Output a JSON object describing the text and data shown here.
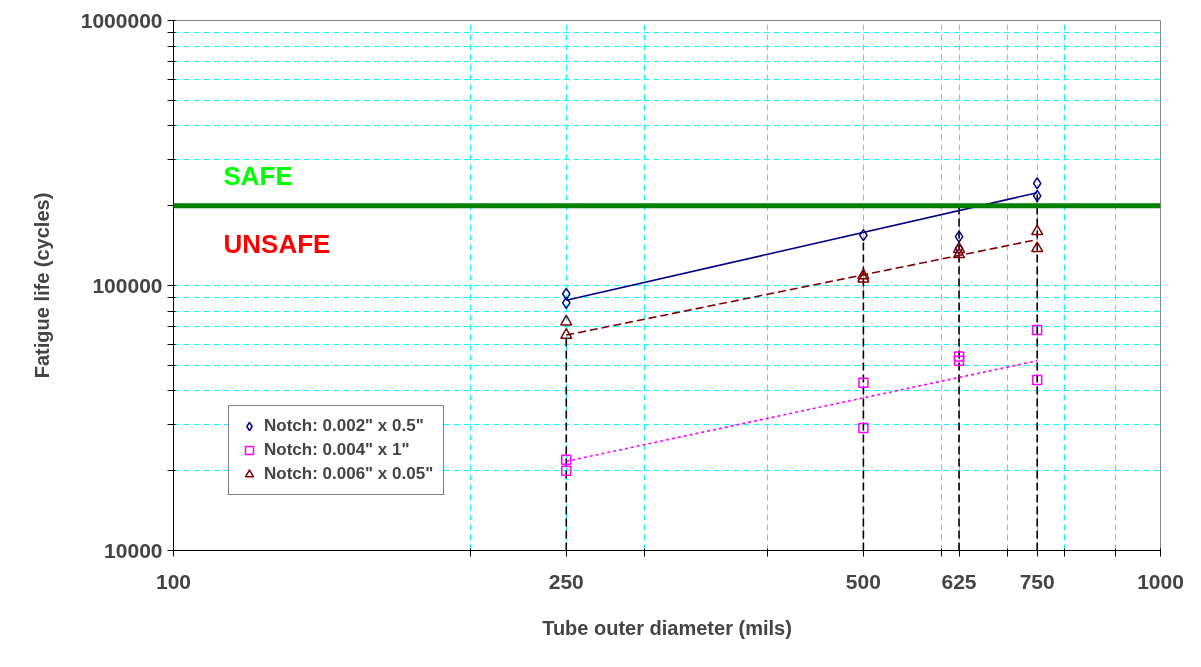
{
  "chart_data": {
    "type": "scatter",
    "xlabel": "Tube outer diameter (mils)",
    "ylabel": "Fatigue life (cycles)",
    "log": "xy",
    "grid": true,
    "legend": "bottom left",
    "xlim": [
      100,
      1000
    ],
    "ylim": [
      10000,
      1000000
    ],
    "xticks": [
      100,
      {
        "value": 200,
        "label": null
      },
      250,
      {
        "value": 300,
        "label": null
      },
      {
        "value": 400,
        "label": null
      },
      500,
      {
        "value": 600,
        "label": null
      },
      625,
      {
        "value": 700,
        "label": null
      },
      750,
      {
        "value": 800,
        "label": null
      },
      {
        "value": 900,
        "label": null
      },
      1000
    ],
    "yticks": [
      10000,
      {
        "value": 20000,
        "label": null
      },
      {
        "value": 30000,
        "label": null
      },
      {
        "value": 40000,
        "label": null
      },
      {
        "value": 50000,
        "label": null
      },
      {
        "value": 60000,
        "label": null
      },
      {
        "value": 70000,
        "label": null
      },
      {
        "value": 80000,
        "label": null
      },
      {
        "value": 90000,
        "label": null
      },
      100000,
      {
        "value": 200000,
        "label": null
      },
      {
        "value": 300000,
        "label": null
      },
      {
        "value": 400000,
        "label": null
      },
      {
        "value": 500000,
        "label": null
      },
      {
        "value": 600000,
        "label": null
      },
      {
        "value": 700000,
        "label": null
      },
      {
        "value": 800000,
        "label": null
      },
      {
        "value": 900000,
        "label": null
      },
      1000000
    ],
    "ref_lines": [
      {
        "axis": "y",
        "value": 200000,
        "color": "#008000",
        "line_style": "solid"
      }
    ],
    "annotations": [
      "SAFE",
      "UNSAFE"
    ],
    "series": [
      {
        "type": "line",
        "color": "#000000",
        "line_style": "dashed",
        "marker": "none",
        "x": [
          250,
          250
        ],
        "values": [
          10000,
          65000
        ]
      },
      {
        "type": "line",
        "color": "#000000",
        "line_style": "dashed",
        "marker": "none",
        "x": [
          500,
          500
        ],
        "values": [
          10000,
          150000
        ]
      },
      {
        "type": "line",
        "color": "#000000",
        "line_style": "dashed",
        "marker": "none",
        "x": [
          625,
          625
        ],
        "values": [
          10000,
          200000
        ]
      },
      {
        "type": "line",
        "color": "#000000",
        "line_style": "dashed",
        "marker": "none",
        "x": [
          750,
          750
        ],
        "values": [
          10000,
          224000
        ]
      },
      {
        "type": "line",
        "color": "#000080",
        "line_style": "solid",
        "marker": "none",
        "x": [
          250,
          750
        ],
        "values": [
          88000,
          224000
        ]
      },
      {
        "type": "line",
        "color": "#800000",
        "line_style": "dashed",
        "marker": "none",
        "x": [
          250,
          750
        ],
        "values": [
          65000,
          149000
        ]
      },
      {
        "type": "line",
        "color": "#ff00ff",
        "line_style": "dotted",
        "marker": "none",
        "x": [
          250,
          750
        ],
        "values": [
          21700,
          52000
        ]
      },
      {
        "name": "Notch: 0.002\" x 0.5\"",
        "color": "#000080",
        "marker": "diamond",
        "x": [
          250,
          250,
          500,
          625,
          625,
          750,
          750
        ],
        "values": [
          93000,
          86000,
          155000,
          153000,
          138000,
          243000,
          218000
        ]
      },
      {
        "name": "Notch: 0.004\" x 1\"",
        "color": "#ff00ff",
        "marker": "square",
        "x": [
          250,
          250,
          500,
          500,
          625,
          625,
          750,
          750
        ],
        "values": [
          22000,
          20000,
          43000,
          29000,
          54000,
          52000,
          68000,
          44000
        ]
      },
      {
        "name": "Notch: 0.006\" x 0.05\"",
        "color": "#800000",
        "marker": "triangle",
        "x": [
          250,
          250,
          500,
          500,
          625,
          625,
          750,
          750
        ],
        "values": [
          73000,
          65000,
          109000,
          106000,
          137000,
          131000,
          160000,
          138000
        ]
      }
    ]
  }
}
